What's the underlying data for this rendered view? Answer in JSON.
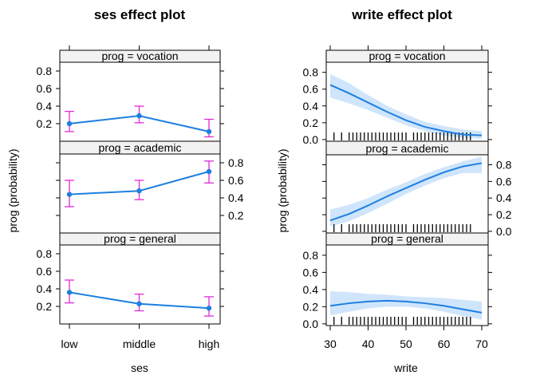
{
  "chart_data": [
    {
      "type": "line",
      "title": "ses effect plot",
      "xlabel": "ses",
      "ylabel": "prog (probability)",
      "categories": [
        "low",
        "middle",
        "high"
      ],
      "panel_order": [
        "vocation",
        "academic",
        "general"
      ],
      "panels": [
        {
          "strip": "prog = vocation",
          "prog": "vocation",
          "fit": [
            0.2,
            0.29,
            0.11
          ],
          "lower": [
            0.11,
            0.21,
            0.05
          ],
          "upper": [
            0.34,
            0.4,
            0.25
          ]
        },
        {
          "strip": "prog = academic",
          "prog": "academic",
          "fit": [
            0.44,
            0.48,
            0.7
          ],
          "lower": [
            0.3,
            0.38,
            0.57
          ],
          "upper": [
            0.6,
            0.6,
            0.82
          ]
        },
        {
          "strip": "prog = general",
          "prog": "general",
          "fit": [
            0.36,
            0.23,
            0.18
          ],
          "lower": [
            0.24,
            0.15,
            0.09
          ],
          "upper": [
            0.5,
            0.34,
            0.31
          ]
        }
      ],
      "yticks": [
        0.2,
        0.4,
        0.6,
        0.8
      ],
      "ylim": [
        0.0,
        0.9
      ],
      "error_bar_color": "#e22ad6",
      "line_color": "#1e7fe0"
    },
    {
      "type": "line",
      "title": "write effect plot",
      "xlabel": "write",
      "ylabel": "prog (probability)",
      "xticks": [
        30,
        40,
        50,
        60,
        70
      ],
      "xlim": [
        28,
        72
      ],
      "yticks": [
        0.0,
        0.2,
        0.4,
        0.6,
        0.8
      ],
      "ylim": [
        -0.02,
        0.92
      ],
      "rug": [
        31,
        33,
        35,
        36,
        37,
        38,
        39,
        40,
        41,
        42,
        43,
        44,
        45,
        46,
        47,
        48,
        49,
        50,
        52,
        53,
        54,
        55,
        56,
        57,
        58,
        59,
        60,
        61,
        62,
        63,
        64,
        65,
        66,
        67
      ],
      "panels": [
        {
          "strip": "prog = vocation",
          "prog": "vocation",
          "x": [
            30,
            35,
            40,
            45,
            50,
            55,
            60,
            65,
            70
          ],
          "fit": [
            0.65,
            0.55,
            0.44,
            0.33,
            0.23,
            0.15,
            0.1,
            0.06,
            0.05
          ],
          "lower": [
            0.5,
            0.43,
            0.35,
            0.26,
            0.17,
            0.1,
            0.05,
            0.02,
            0.01
          ],
          "upper": [
            0.78,
            0.67,
            0.53,
            0.4,
            0.3,
            0.21,
            0.16,
            0.12,
            0.1
          ]
        },
        {
          "strip": "prog = academic",
          "prog": "academic",
          "x": [
            30,
            35,
            40,
            45,
            50,
            55,
            60,
            65,
            70
          ],
          "fit": [
            0.13,
            0.21,
            0.31,
            0.42,
            0.52,
            0.62,
            0.71,
            0.78,
            0.82
          ],
          "lower": [
            0.06,
            0.12,
            0.22,
            0.33,
            0.45,
            0.55,
            0.64,
            0.7,
            0.7
          ],
          "upper": [
            0.26,
            0.32,
            0.4,
            0.5,
            0.59,
            0.69,
            0.77,
            0.84,
            0.9
          ]
        },
        {
          "strip": "prog = general",
          "prog": "general",
          "x": [
            30,
            35,
            40,
            45,
            50,
            55,
            60,
            65,
            70
          ],
          "fit": [
            0.21,
            0.24,
            0.26,
            0.27,
            0.26,
            0.24,
            0.21,
            0.17,
            0.13
          ],
          "lower": [
            0.1,
            0.14,
            0.18,
            0.2,
            0.2,
            0.18,
            0.14,
            0.09,
            0.05
          ],
          "upper": [
            0.38,
            0.37,
            0.35,
            0.34,
            0.32,
            0.31,
            0.3,
            0.28,
            0.26
          ]
        }
      ],
      "line_color": "#1e7fe0",
      "band_color": "#cfe5fb"
    }
  ],
  "strip_color": "#f2f2f2"
}
